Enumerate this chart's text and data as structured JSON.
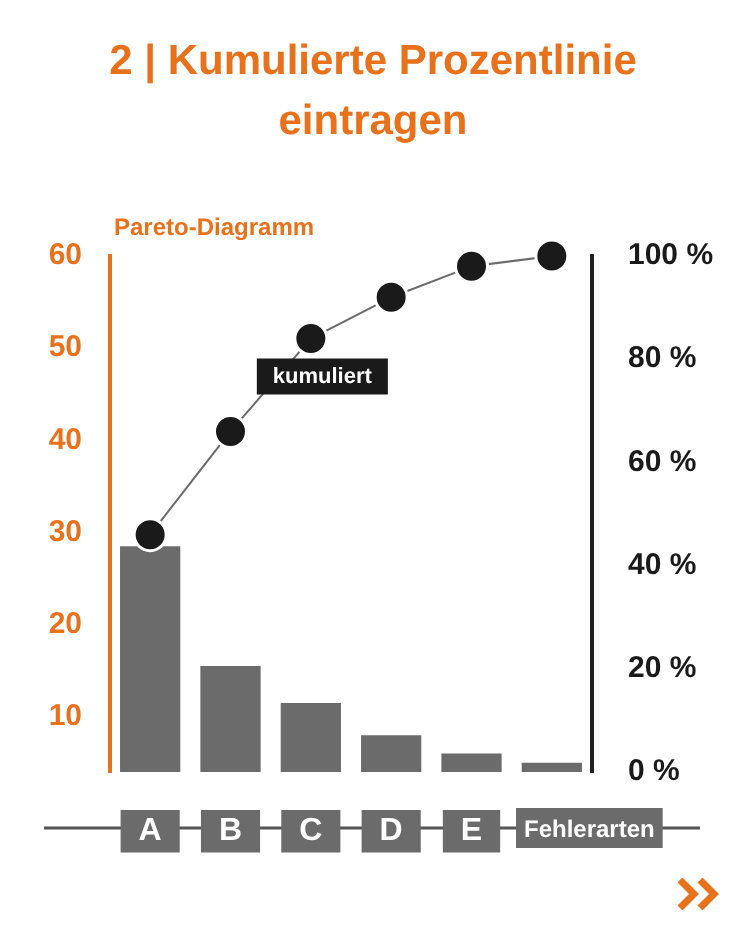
{
  "chart_data": {
    "type": "bar",
    "title": "2 | Kumulierte Prozentlinie eintragen",
    "xlabel": "Fehlerarten",
    "categories": [
      "A",
      "B",
      "C",
      "D",
      "E",
      null
    ],
    "series": [
      {
        "color": "#6b6b6b",
        "values": [
          28.5,
          15.5,
          11.5,
          8,
          6,
          5
        ]
      },
      {
        "type": "line",
        "name": "kumuliert",
        "axis": "y2",
        "color": "#1a1a1a",
        "values": [
          46,
          66,
          84,
          92,
          98,
          100
        ]
      }
    ],
    "ylim": [
      4,
      60
    ],
    "yticks": [
      10,
      20,
      30,
      40,
      50,
      60
    ],
    "y2lim": [
      0,
      100
    ],
    "y2ticks": [
      {
        "value": 0,
        "label": "0 %"
      },
      {
        "value": 20,
        "label": "20 %"
      },
      {
        "value": 40,
        "label": "40 %"
      },
      {
        "value": 60,
        "label": "60 %"
      },
      {
        "value": 80,
        "label": "80 %"
      },
      {
        "value": 100,
        "label": "100 %"
      }
    ],
    "annotations": [
      "Pareto-Diagramm"
    ],
    "grid": false,
    "legend": false,
    "marker": "circle"
  }
}
